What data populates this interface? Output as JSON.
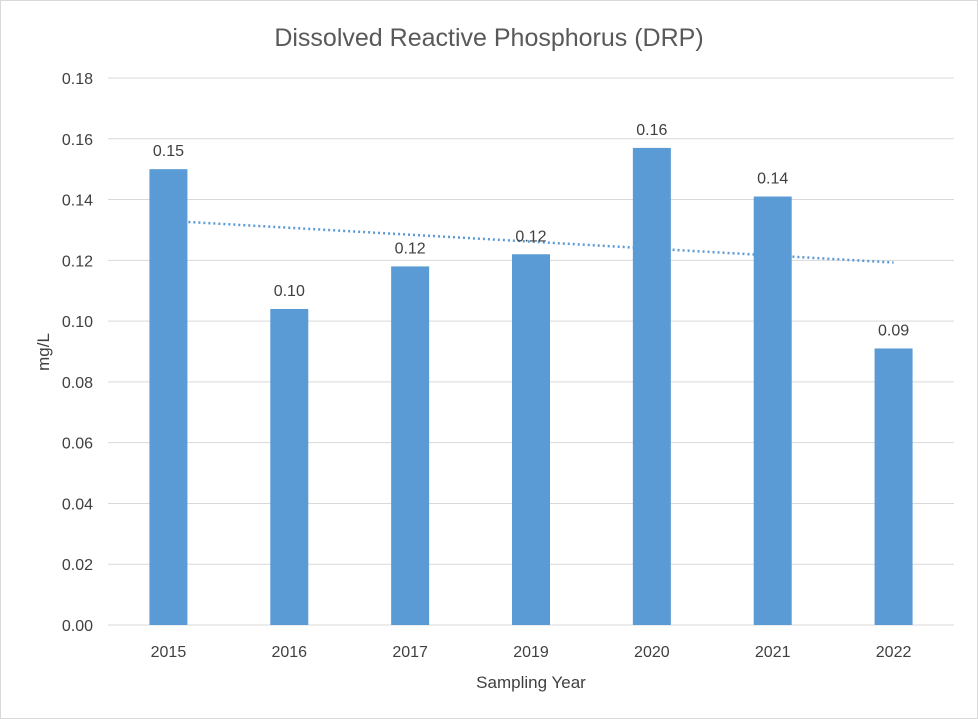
{
  "chart_data": {
    "type": "bar",
    "title": "Dissolved Reactive Phosphorus (DRP)",
    "xlabel": "Sampling Year",
    "ylabel": "mg/L",
    "categories": [
      "2015",
      "2016",
      "2017",
      "2019",
      "2020",
      "2021",
      "2022"
    ],
    "values": [
      0.15,
      0.104,
      0.118,
      0.122,
      0.157,
      0.141,
      0.091
    ],
    "data_labels": [
      "0.15",
      "0.10",
      "0.12",
      "0.12",
      "0.16",
      "0.14",
      "0.09"
    ],
    "ylim": [
      0,
      0.18
    ],
    "yticks": [
      "0.00",
      "0.02",
      "0.04",
      "0.06",
      "0.08",
      "0.10",
      "0.12",
      "0.14",
      "0.16",
      "0.18"
    ],
    "ytick_values": [
      0,
      0.02,
      0.04,
      0.06,
      0.08,
      0.1,
      0.12,
      0.14,
      0.16,
      0.18
    ],
    "grid": true,
    "legend": "none",
    "trendline": {
      "type": "linear",
      "style": "dotted"
    },
    "colors": {
      "bar": "#5b9bd5",
      "trendline": "#5b9bd5",
      "grid": "#d9d9d9"
    }
  }
}
